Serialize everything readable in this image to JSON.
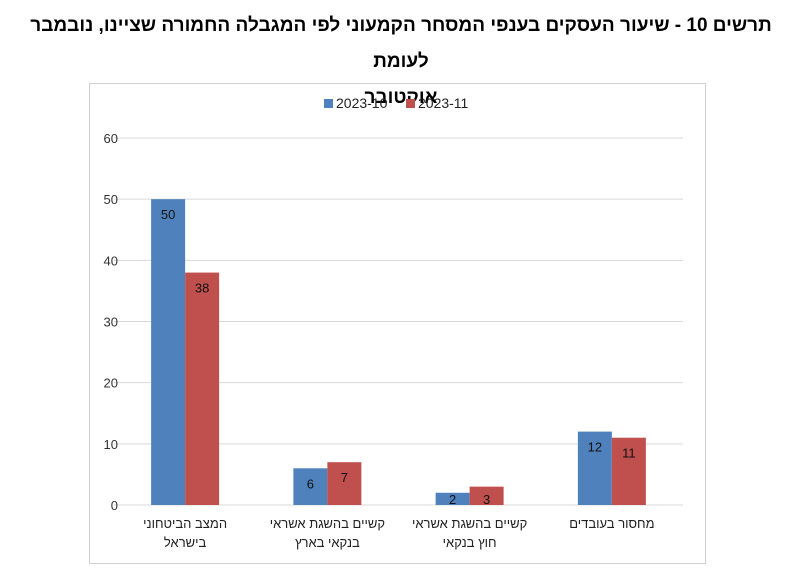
{
  "chart_data": {
    "type": "bar",
    "title_line1": "תרשים 10 - שיעור העסקים בענפי המסחר הקמעוני לפי המגבלה החמורה שציינו, נובמבר לעומת",
    "title_line2": "אוקטובר",
    "categories": [
      [
        "המצב הביטחוני",
        "בישראל"
      ],
      [
        "קשיים בהשגת אשראי",
        "בנקאי בארץ"
      ],
      [
        "קשיים בהשגת אשראי",
        "חוץ בנקאי"
      ],
      [
        "מחסור בעובדים"
      ]
    ],
    "series": [
      {
        "name": "2023-10",
        "values": [
          50,
          6,
          2,
          12
        ],
        "color": "#4f81bd"
      },
      {
        "name": "2023-11",
        "values": [
          38,
          7,
          3,
          11
        ],
        "color": "#c0504d"
      }
    ],
    "ylim": [
      0,
      60
    ],
    "yticks": [
      0,
      10,
      20,
      30,
      40,
      50,
      60
    ],
    "grid": true,
    "legend_position": "top-center"
  }
}
